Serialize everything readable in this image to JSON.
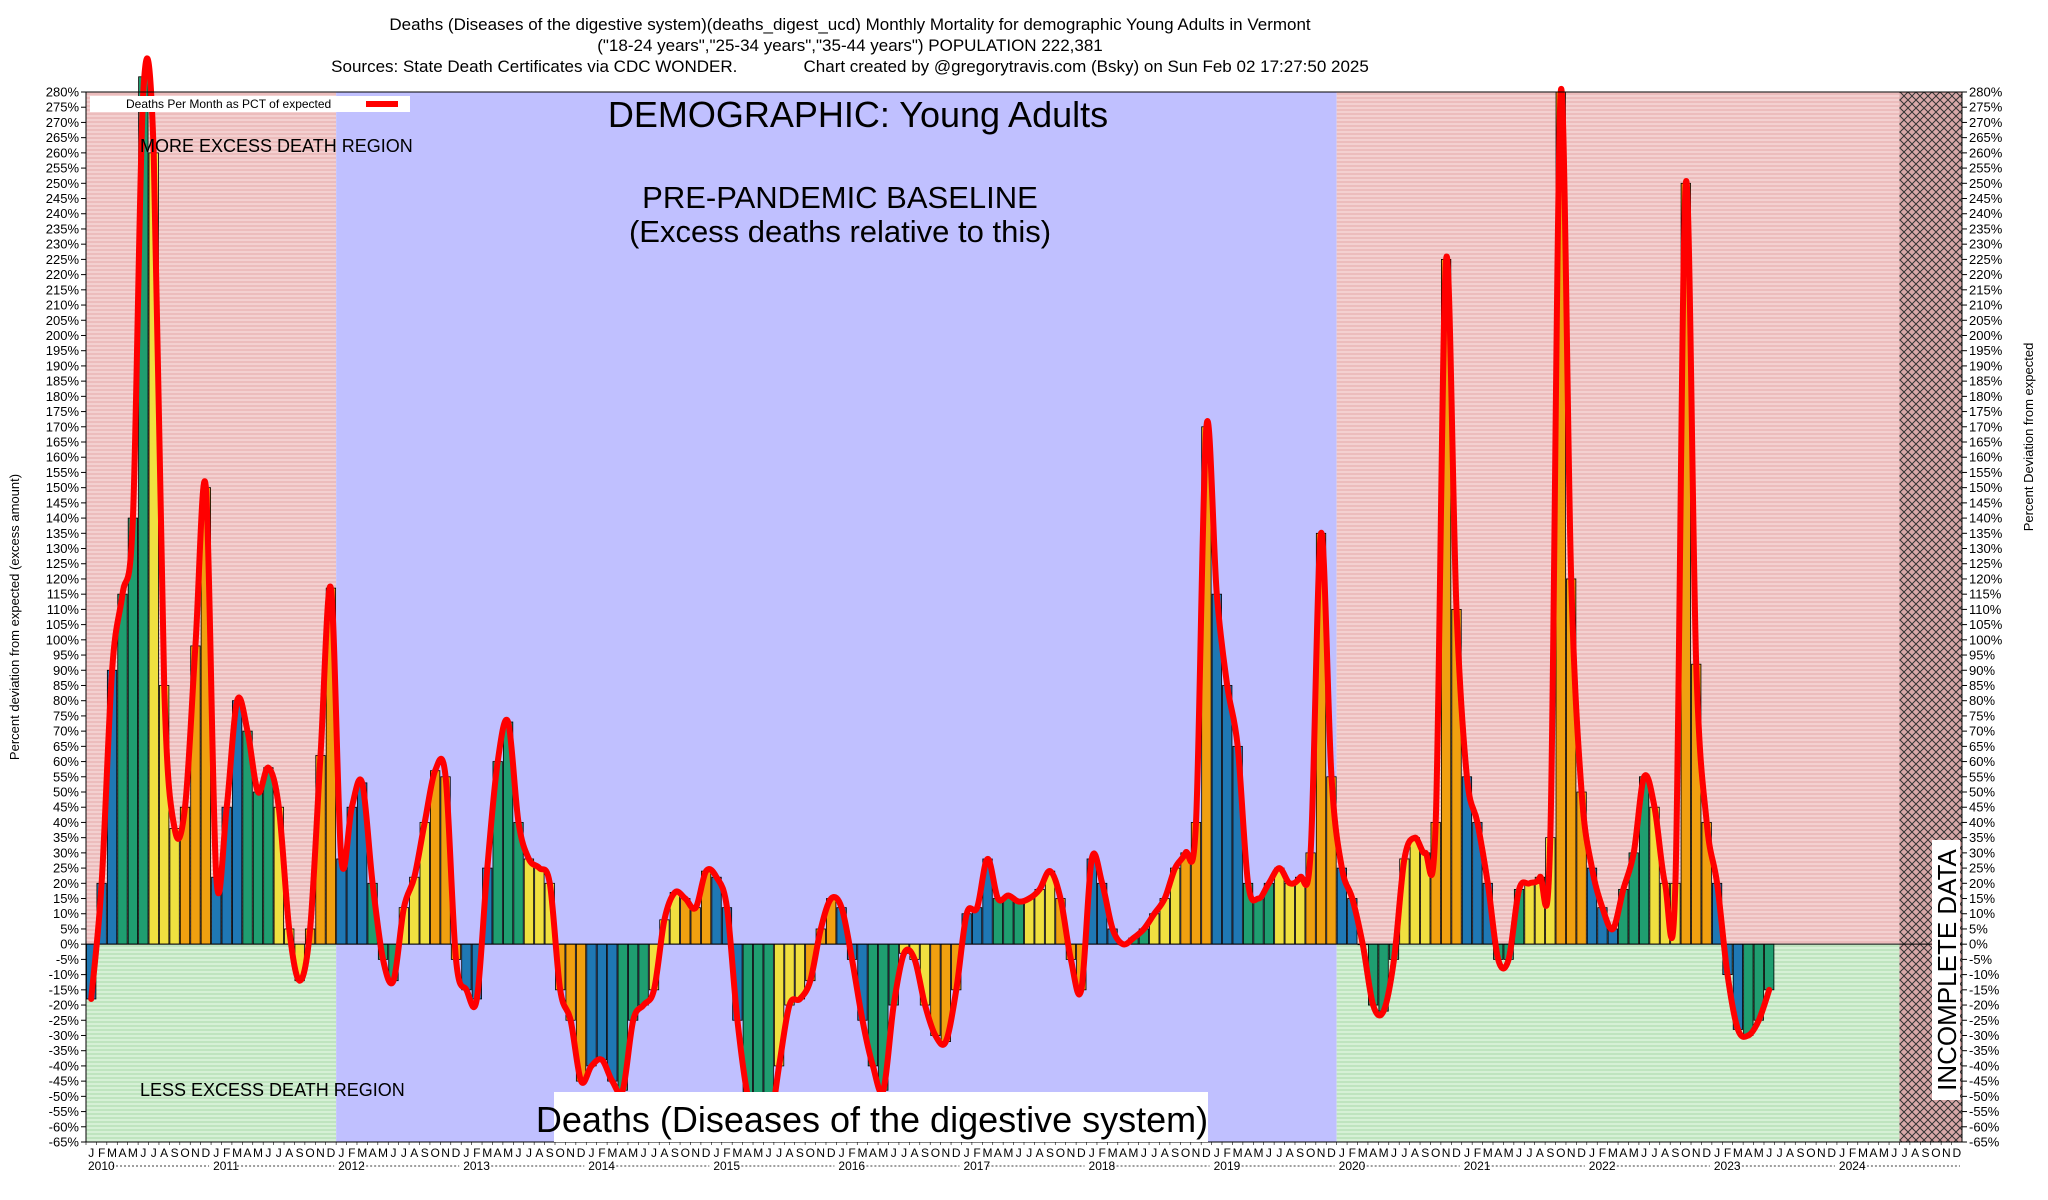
{
  "header": {
    "title_line1": "Deaths (Diseases of the digestive system)(deaths_digest_ucd) Monthly Mortality for demographic Young Adults in Vermont",
    "title_line2": "(\"18-24 years\",\"25-34 years\",\"35-44 years\") POPULATION 222,381",
    "title_line3": "Sources: State Death Certificates via CDC WONDER.              Chart created by @gregorytravis.com (Bsky) on Sun Feb 02 17:27:50 2025"
  },
  "annotations": {
    "demographic": "DEMOGRAPHIC: Young Adults",
    "baseline_line1": "PRE-PANDEMIC BASELINE",
    "baseline_line2": "(Excess deaths relative to this)",
    "more_excess": "MORE EXCESS DEATH REGION",
    "less_excess": "LESS EXCESS DEATH REGION",
    "cause": "Deaths (Diseases of the digestive system)",
    "incomplete": "INCOMPLETE DATA"
  },
  "colors": {
    "excess_region": "#f0c8c8",
    "deficit_region": "#cdeccd",
    "baseline_region": "#c0c0ff",
    "line": "#ff0000",
    "bar_blue": "#1f78b4",
    "bar_green": "#1f9e70",
    "bar_yellow": "#f0e040",
    "bar_orange": "#f0a010"
  },
  "chart_data": {
    "type": "bar",
    "legend": {
      "label": "Deaths Per Month as PCT of expected",
      "position": "top-left"
    },
    "ylabel_left": "Percent deviation from expected (excess amount)",
    "ylabel_right": "Percent Deviation from expected",
    "ylim": [
      -65,
      280
    ],
    "y_tick_step": 5,
    "y_tick_suffix": "%",
    "month_letters": [
      "J",
      "F",
      "M",
      "A",
      "M",
      "J",
      "J",
      "A",
      "S",
      "O",
      "N",
      "D"
    ],
    "years": [
      "2010",
      "2011",
      "2012",
      "2013",
      "2014",
      "2015",
      "2016",
      "2017",
      "2018",
      "2019",
      "2020",
      "2021",
      "2022",
      "2023",
      "2024"
    ],
    "x_start": "2010-01",
    "baseline_period": [
      "2012-01",
      "2019-12"
    ],
    "incomplete_from": "2024-07",
    "values": [
      -18,
      20,
      90,
      115,
      140,
      285,
      260,
      85,
      38,
      45,
      98,
      150,
      22,
      45,
      80,
      70,
      50,
      58,
      45,
      5,
      -12,
      5,
      62,
      117,
      28,
      45,
      53,
      20,
      -5,
      -12,
      12,
      22,
      40,
      57,
      55,
      -5,
      -15,
      -18,
      25,
      60,
      73,
      40,
      28,
      25,
      20,
      -15,
      -25,
      -45,
      -40,
      -38,
      -45,
      -48,
      -25,
      -20,
      -15,
      8,
      17,
      15,
      12,
      24,
      22,
      12,
      -25,
      -50,
      -60,
      -62,
      -40,
      -20,
      -18,
      -12,
      5,
      15,
      12,
      -5,
      -25,
      -40,
      -48,
      -20,
      -3,
      -5,
      -20,
      -30,
      -32,
      -15,
      10,
      12,
      28,
      15,
      16,
      14,
      15,
      18,
      24,
      15,
      -5,
      -15,
      28,
      20,
      5,
      0,
      2,
      5,
      10,
      15,
      25,
      30,
      40,
      170,
      115,
      85,
      65,
      20,
      15,
      20,
      25,
      20,
      22,
      30,
      135,
      55,
      25,
      15,
      0,
      -20,
      -22,
      -5,
      28,
      35,
      30,
      40,
      225,
      110,
      55,
      40,
      20,
      -5,
      -5,
      18,
      20,
      22,
      35,
      280,
      120,
      50,
      25,
      12,
      5,
      18,
      30,
      55,
      45,
      20,
      20,
      250,
      92,
      40,
      20,
      -10,
      -28,
      -30,
      -25,
      -15
    ]
  }
}
